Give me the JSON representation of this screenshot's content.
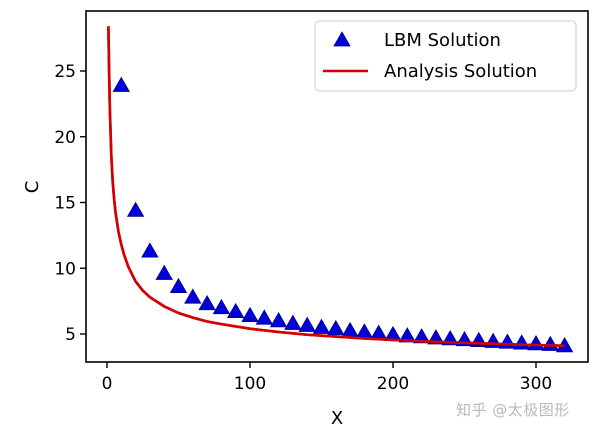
{
  "chart_data": {
    "type": "line",
    "title": "",
    "xlabel": "X",
    "ylabel": "C",
    "xlim": [
      -15,
      336
    ],
    "ylim": [
      2.2,
      29.0
    ],
    "x_ticks": [
      0,
      100,
      200,
      300
    ],
    "x_tick_labels": [
      "0",
      "100",
      "200",
      "300"
    ],
    "y_ticks": [
      5,
      10,
      15,
      20,
      25
    ],
    "y_tick_labels": [
      "5",
      "10",
      "15",
      "20",
      "25"
    ],
    "grid": false,
    "legend_position": "upper right",
    "series": [
      {
        "name": "LBM Solution",
        "kind": "scatter",
        "marker": "triangle-up",
        "color": "#0000d8",
        "x": [
          10,
          20,
          30,
          40,
          50,
          60,
          70,
          80,
          90,
          100,
          110,
          120,
          130,
          140,
          150,
          160,
          170,
          180,
          190,
          200,
          210,
          220,
          230,
          240,
          250,
          260,
          270,
          280,
          290,
          300,
          310,
          320
        ],
        "y": [
          23.9,
          14.4,
          11.3,
          9.6,
          8.6,
          7.8,
          7.3,
          7.0,
          6.7,
          6.4,
          6.2,
          6.0,
          5.8,
          5.65,
          5.5,
          5.4,
          5.25,
          5.15,
          5.05,
          4.95,
          4.85,
          4.78,
          4.7,
          4.63,
          4.56,
          4.5,
          4.43,
          4.37,
          4.31,
          4.25,
          4.2,
          4.1
        ]
      },
      {
        "name": "Analysis Solution",
        "kind": "line",
        "color": "#d40000",
        "x": [
          1,
          1.5,
          2,
          3,
          4,
          5,
          6,
          8,
          10,
          12,
          15,
          20,
          25,
          30,
          40,
          50,
          60,
          70,
          80,
          100,
          120,
          140,
          160,
          180,
          200,
          220,
          240,
          260,
          280,
          300,
          320
        ],
        "y": [
          28.4,
          25.0,
          22.0,
          18.6,
          16.6,
          15.2,
          14.2,
          12.8,
          11.8,
          11.0,
          10.1,
          9.0,
          8.3,
          7.8,
          7.1,
          6.6,
          6.25,
          5.95,
          5.75,
          5.4,
          5.15,
          4.95,
          4.8,
          4.66,
          4.55,
          4.45,
          4.37,
          4.29,
          4.22,
          4.16,
          4.1
        ]
      }
    ]
  },
  "legend": {
    "items": [
      {
        "label": "LBM Solution",
        "symbol": "triangle"
      },
      {
        "label": "Analysis Solution",
        "symbol": "line"
      }
    ]
  },
  "watermark": "知乎 @太极图形",
  "colors": {
    "marker_fill": "#0000d8",
    "marker_edge": "#00008b",
    "line": "#d40000",
    "axes": "#000000",
    "legend_border": "#cccccc"
  }
}
